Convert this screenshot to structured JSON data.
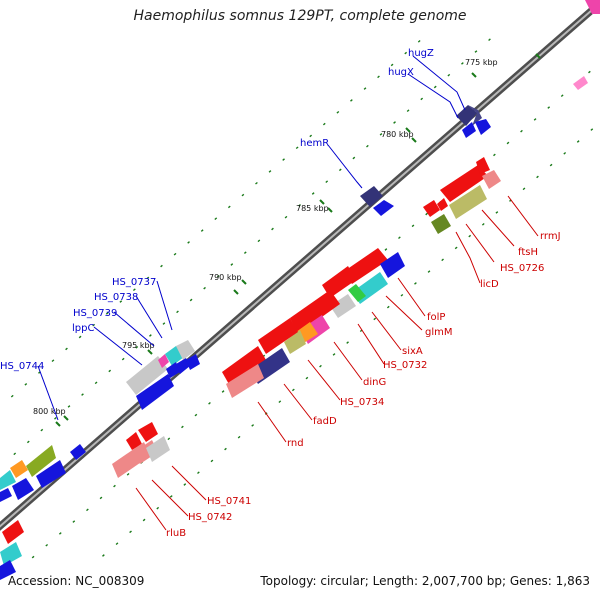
{
  "title": "Haemophilus somnus 129PT, complete genome",
  "footer": {
    "accession": "Accession: NC_008309",
    "summary": "Topology: circular; Length: 2,007,700 bp; Genes: 1,863"
  },
  "colors": {
    "backbone": "#8a8a8a",
    "label_forward": "#0000cc",
    "label_reverse": "#cc0000",
    "tick": "#1a7a1a"
  },
  "ruler_labels": [
    "775 kbp",
    "780 kbp",
    "785 kbp",
    "790 kbp",
    "795 kbp",
    "800 kbp"
  ],
  "forward_gene_labels": [
    "hugZ",
    "hugX",
    "hemR",
    "HS_0737",
    "HS_0738",
    "HS_0739",
    "lppC",
    "HS_0744"
  ],
  "reverse_gene_labels": [
    "rrmJ",
    "ftsH",
    "HS_0726",
    "licD",
    "folP",
    "glmM",
    "sixA",
    "HS_0732",
    "dinG",
    "HS_0734",
    "fadD",
    "rnd",
    "HS_0741",
    "HS_0742",
    "rluB"
  ]
}
